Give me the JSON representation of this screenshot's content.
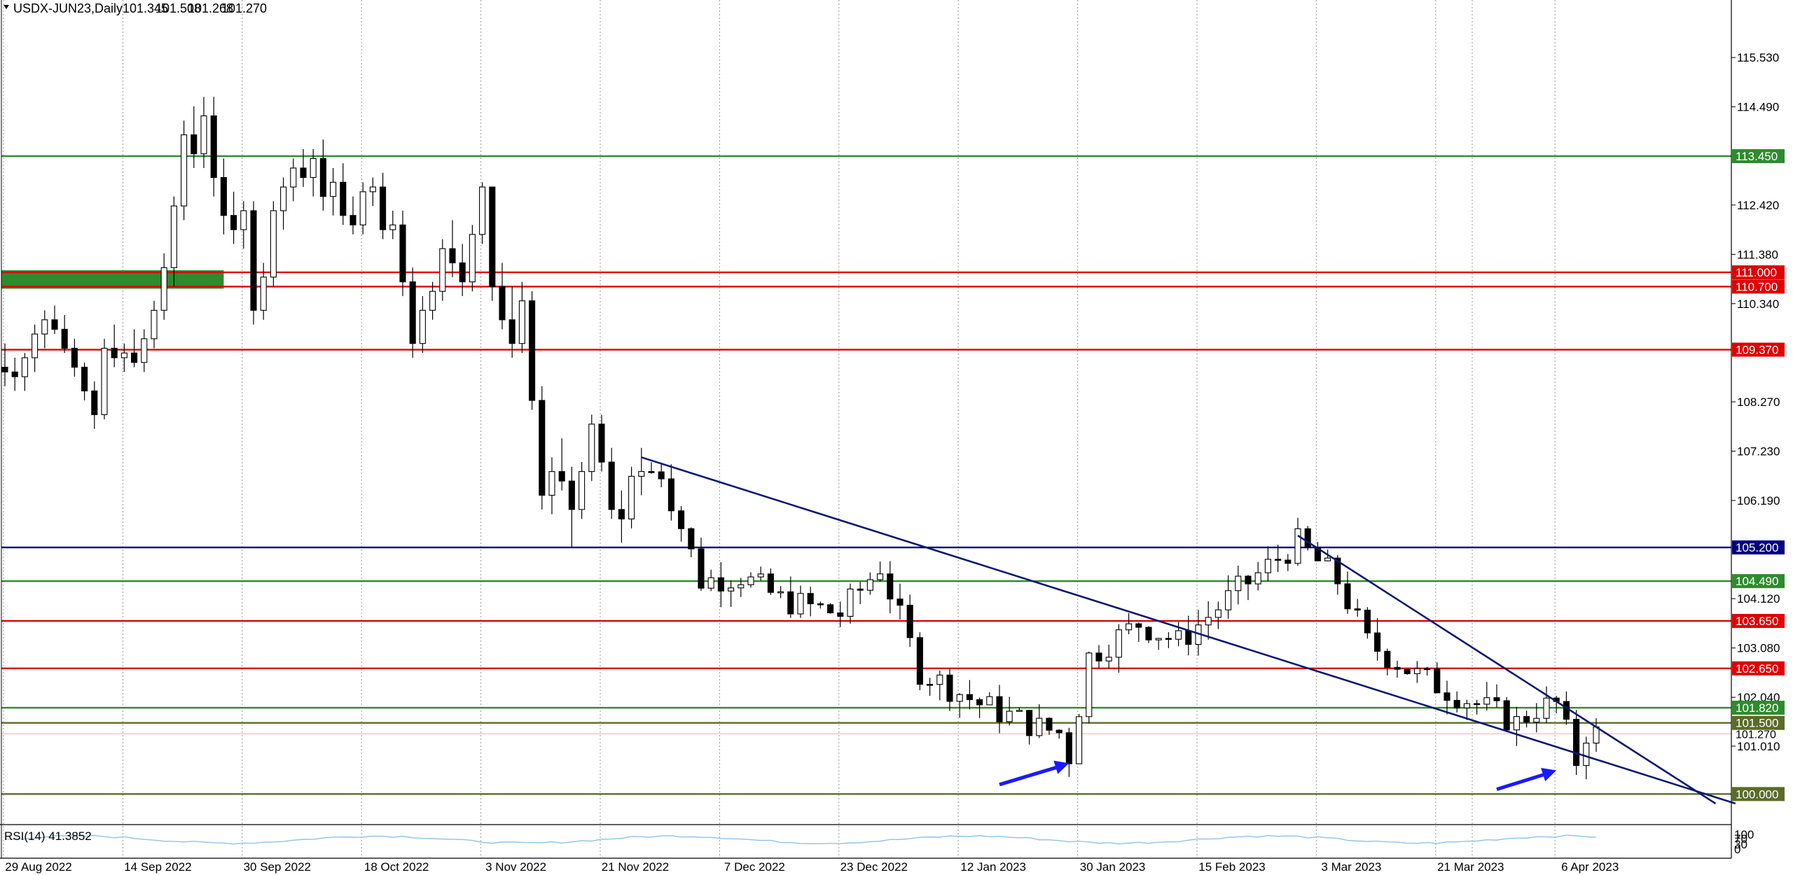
{
  "header": {
    "symbol": "USDX-JUN23,Daily",
    "open": "101.345",
    "high": "101.508",
    "low": "101.268",
    "close": "101.270"
  },
  "rsi_panel": {
    "label": "RSI(14) 41.3852",
    "scale_top": "100",
    "scale_mid": "70",
    "scale_low": "30",
    "scale_bottom": "0"
  },
  "colors": {
    "up": "#ffffff",
    "down": "#000000",
    "resistance": "#e00000",
    "support": "#2e8b2e",
    "olive": "#5b6b2a",
    "pivot": "#00007f",
    "trendline": "#0b1a6e",
    "arrow": "#1a1aff",
    "zone": "#2e8b2e"
  },
  "chart_data": {
    "type": "candlestick",
    "title": "USDX-JUN23,Daily",
    "ylim": [
      99.4,
      116.3
    ],
    "y_ticks": [
      "115.530",
      "114.490",
      "112.420",
      "111.380",
      "110.340",
      "108.270",
      "107.230",
      "106.190",
      "104.120",
      "103.080",
      "102.040",
      "101.010"
    ],
    "x_ticks": [
      {
        "label": "29 Aug 2022",
        "i": 0
      },
      {
        "label": "14 Sep 2022",
        "i": 12
      },
      {
        "label": "30 Sep 2022",
        "i": 24
      },
      {
        "label": "18 Oct 2022",
        "i": 36
      },
      {
        "label": "3 Nov 2022",
        "i": 48
      },
      {
        "label": "21 Nov 2022",
        "i": 60
      },
      {
        "label": "7 Dec 2022",
        "i": 72
      },
      {
        "label": "23 Dec 2022",
        "i": 84
      },
      {
        "label": "12 Jan 2023",
        "i": 96
      },
      {
        "label": "30 Jan 2023",
        "i": 108
      },
      {
        "label": "15 Feb 2023",
        "i": 120
      },
      {
        "label": "3 Mar 2023",
        "i": 132
      },
      {
        "label": "21 Mar 2023",
        "i": 144
      },
      {
        "label": "6 Apr 2023",
        "i": 156
      }
    ],
    "horizontal_levels": [
      {
        "value": 113.45,
        "label": "113.450",
        "kind": "support"
      },
      {
        "value": 111.0,
        "label": "111.000",
        "kind": "resistance"
      },
      {
        "value": 110.7,
        "label": "110.700",
        "kind": "resistance"
      },
      {
        "value": 109.37,
        "label": "109.370",
        "kind": "resistance"
      },
      {
        "value": 105.2,
        "label": "105.200",
        "kind": "pivot"
      },
      {
        "value": 104.49,
        "label": "104.490",
        "kind": "support"
      },
      {
        "value": 103.65,
        "label": "103.650",
        "kind": "resistance"
      },
      {
        "value": 102.65,
        "label": "102.650",
        "kind": "resistance"
      },
      {
        "value": 101.82,
        "label": "101.820",
        "kind": "support"
      },
      {
        "value": 101.5,
        "label": "101.500",
        "kind": "olive"
      },
      {
        "value": 100.0,
        "label": "100.000",
        "kind": "olive"
      }
    ],
    "current_price": {
      "value": 101.27,
      "label": "101.270"
    },
    "zone": {
      "from_i": 0,
      "to_i": 22,
      "low": 110.7,
      "high": 111.0
    },
    "trendlines": [
      {
        "name": "upper-left",
        "from": {
          "i": 64,
          "v": 107.1
        },
        "to": {
          "i": 174,
          "v": 99.8
        }
      },
      {
        "name": "wedge-upper",
        "from": {
          "i": 130,
          "v": 105.45
        },
        "to": {
          "i": 172,
          "v": 99.8
        }
      }
    ],
    "arrows": [
      {
        "from": {
          "i": 100,
          "v": 100.2
        },
        "to": {
          "i": 107,
          "v": 100.65
        }
      },
      {
        "from": {
          "i": 150,
          "v": 100.1
        },
        "to": {
          "i": 156,
          "v": 100.5
        }
      }
    ],
    "candles": [
      {
        "o": 109.0,
        "h": 109.5,
        "l": 108.6,
        "c": 108.9
      },
      {
        "o": 108.9,
        "h": 109.2,
        "l": 108.5,
        "c": 108.8
      },
      {
        "o": 108.8,
        "h": 109.3,
        "l": 108.5,
        "c": 109.2
      },
      {
        "o": 109.2,
        "h": 109.9,
        "l": 108.9,
        "c": 109.7
      },
      {
        "o": 109.7,
        "h": 110.2,
        "l": 109.4,
        "c": 110.0
      },
      {
        "o": 110.0,
        "h": 110.3,
        "l": 109.7,
        "c": 109.8
      },
      {
        "o": 109.8,
        "h": 110.1,
        "l": 109.3,
        "c": 109.4
      },
      {
        "o": 109.4,
        "h": 109.6,
        "l": 108.8,
        "c": 109.0
      },
      {
        "o": 109.0,
        "h": 109.1,
        "l": 108.3,
        "c": 108.5
      },
      {
        "o": 108.5,
        "h": 108.7,
        "l": 107.7,
        "c": 108.0
      },
      {
        "o": 108.0,
        "h": 109.6,
        "l": 107.9,
        "c": 109.4
      },
      {
        "o": 109.4,
        "h": 109.9,
        "l": 109.0,
        "c": 109.2
      },
      {
        "o": 109.2,
        "h": 109.5,
        "l": 108.9,
        "c": 109.3
      },
      {
        "o": 109.3,
        "h": 109.8,
        "l": 109.0,
        "c": 109.1
      },
      {
        "o": 109.1,
        "h": 109.8,
        "l": 108.9,
        "c": 109.6
      },
      {
        "o": 109.6,
        "h": 110.4,
        "l": 109.4,
        "c": 110.2
      },
      {
        "o": 110.2,
        "h": 111.4,
        "l": 110.0,
        "c": 111.1
      },
      {
        "o": 111.1,
        "h": 112.6,
        "l": 110.7,
        "c": 112.4
      },
      {
        "o": 112.4,
        "h": 114.2,
        "l": 112.1,
        "c": 113.9
      },
      {
        "o": 113.9,
        "h": 114.5,
        "l": 113.2,
        "c": 113.5
      },
      {
        "o": 113.5,
        "h": 114.7,
        "l": 113.2,
        "c": 114.3
      },
      {
        "o": 114.3,
        "h": 114.7,
        "l": 112.6,
        "c": 113.0
      },
      {
        "o": 113.0,
        "h": 113.4,
        "l": 111.8,
        "c": 112.2
      },
      {
        "o": 112.2,
        "h": 112.7,
        "l": 111.6,
        "c": 111.9
      },
      {
        "o": 111.9,
        "h": 112.5,
        "l": 111.5,
        "c": 112.3
      },
      {
        "o": 112.3,
        "h": 112.5,
        "l": 109.9,
        "c": 110.2
      },
      {
        "o": 110.2,
        "h": 111.2,
        "l": 110.0,
        "c": 110.9
      },
      {
        "o": 110.9,
        "h": 112.5,
        "l": 110.7,
        "c": 112.3
      },
      {
        "o": 112.3,
        "h": 113.0,
        "l": 111.9,
        "c": 112.8
      },
      {
        "o": 112.8,
        "h": 113.4,
        "l": 112.5,
        "c": 113.2
      },
      {
        "o": 113.2,
        "h": 113.6,
        "l": 112.8,
        "c": 113.0
      },
      {
        "o": 113.0,
        "h": 113.6,
        "l": 112.6,
        "c": 113.4
      },
      {
        "o": 113.4,
        "h": 113.8,
        "l": 112.3,
        "c": 112.6
      },
      {
        "o": 112.6,
        "h": 113.2,
        "l": 112.2,
        "c": 112.9
      },
      {
        "o": 112.9,
        "h": 113.3,
        "l": 112.0,
        "c": 112.2
      },
      {
        "o": 112.2,
        "h": 112.6,
        "l": 111.8,
        "c": 112.0
      },
      {
        "o": 112.0,
        "h": 112.9,
        "l": 111.8,
        "c": 112.7
      },
      {
        "o": 112.7,
        "h": 113.0,
        "l": 112.4,
        "c": 112.8
      },
      {
        "o": 112.8,
        "h": 113.1,
        "l": 111.7,
        "c": 111.9
      },
      {
        "o": 111.9,
        "h": 112.3,
        "l": 111.7,
        "c": 112.0
      },
      {
        "o": 112.0,
        "h": 112.3,
        "l": 110.5,
        "c": 110.8
      },
      {
        "o": 110.8,
        "h": 111.1,
        "l": 109.2,
        "c": 109.5
      },
      {
        "o": 109.5,
        "h": 110.5,
        "l": 109.3,
        "c": 110.2
      },
      {
        "o": 110.2,
        "h": 110.8,
        "l": 110.0,
        "c": 110.6
      },
      {
        "o": 110.6,
        "h": 111.7,
        "l": 110.4,
        "c": 111.5
      },
      {
        "o": 111.5,
        "h": 112.1,
        "l": 110.9,
        "c": 111.2
      },
      {
        "o": 111.2,
        "h": 111.6,
        "l": 110.5,
        "c": 110.8
      },
      {
        "o": 110.8,
        "h": 112.0,
        "l": 110.6,
        "c": 111.8
      },
      {
        "o": 111.8,
        "h": 112.9,
        "l": 111.6,
        "c": 112.8
      },
      {
        "o": 112.8,
        "h": 112.8,
        "l": 110.4,
        "c": 110.7
      },
      {
        "o": 110.7,
        "h": 111.2,
        "l": 109.8,
        "c": 110.0
      },
      {
        "o": 110.0,
        "h": 110.7,
        "l": 109.2,
        "c": 109.5
      },
      {
        "o": 109.5,
        "h": 110.8,
        "l": 109.3,
        "c": 110.4
      },
      {
        "o": 110.4,
        "h": 110.6,
        "l": 108.1,
        "c": 108.3
      },
      {
        "o": 108.3,
        "h": 108.6,
        "l": 106.0,
        "c": 106.3
      },
      {
        "o": 106.3,
        "h": 107.1,
        "l": 105.9,
        "c": 106.8
      },
      {
        "o": 106.8,
        "h": 107.5,
        "l": 106.4,
        "c": 106.6
      },
      {
        "o": 106.6,
        "h": 106.9,
        "l": 105.2,
        "c": 106.0
      },
      {
        "o": 106.0,
        "h": 107.0,
        "l": 105.8,
        "c": 106.8
      },
      {
        "o": 106.8,
        "h": 108.0,
        "l": 106.6,
        "c": 107.8
      },
      {
        "o": 107.8,
        "h": 108.0,
        "l": 106.8,
        "c": 107.0
      },
      {
        "o": 107.0,
        "h": 107.3,
        "l": 105.8,
        "c": 106.0
      },
      {
        "o": 106.0,
        "h": 106.4,
        "l": 105.3,
        "c": 105.8
      },
      {
        "o": 105.8,
        "h": 106.9,
        "l": 105.6,
        "c": 106.7
      },
      {
        "o": 106.7,
        "h": 107.3,
        "l": 106.3,
        "c": 106.8
      }
    ]
  }
}
